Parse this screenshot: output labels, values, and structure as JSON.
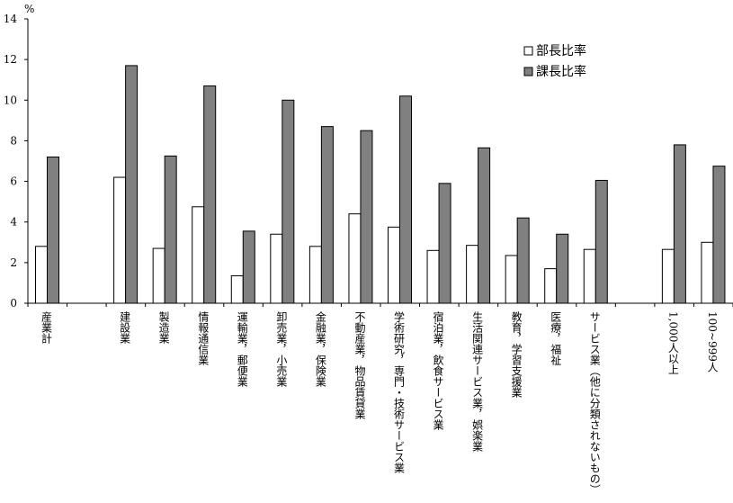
{
  "chart_data": {
    "type": "bar",
    "y_unit": "%",
    "ylim": [
      0,
      14
    ],
    "yticks": [
      0,
      2,
      4,
      6,
      8,
      10,
      12,
      14
    ],
    "grid": false,
    "legend_position": "top-right",
    "categories": [
      "産業計",
      "",
      "建設業",
      "製造業",
      "情報通信業",
      "運輸業，郵便業",
      "卸売業，小売業",
      "金融業，保険業",
      "不動産業，物品賃貸業",
      "学術研究，専門・技術サービス業",
      "宿泊業，飲食サービス業",
      "生活関連サービス業，娯楽業",
      "教育，学習支援業",
      "医療，福祉",
      "サービス業（他に分類されないもの）",
      "",
      "1,000人以上",
      "100~999人"
    ],
    "series": [
      {
        "name": "部長比率",
        "color": "#ffffff",
        "values": [
          2.8,
          null,
          6.2,
          2.7,
          4.75,
          1.35,
          3.4,
          2.8,
          4.4,
          3.75,
          2.6,
          2.85,
          2.35,
          1.7,
          2.65,
          null,
          2.65,
          3.0
        ]
      },
      {
        "name": "課長比率",
        "color": "#808080",
        "values": [
          7.2,
          null,
          11.7,
          7.25,
          10.7,
          3.55,
          10.0,
          8.7,
          8.5,
          10.2,
          5.9,
          7.65,
          4.2,
          3.4,
          6.05,
          null,
          7.8,
          6.75
        ]
      }
    ]
  }
}
